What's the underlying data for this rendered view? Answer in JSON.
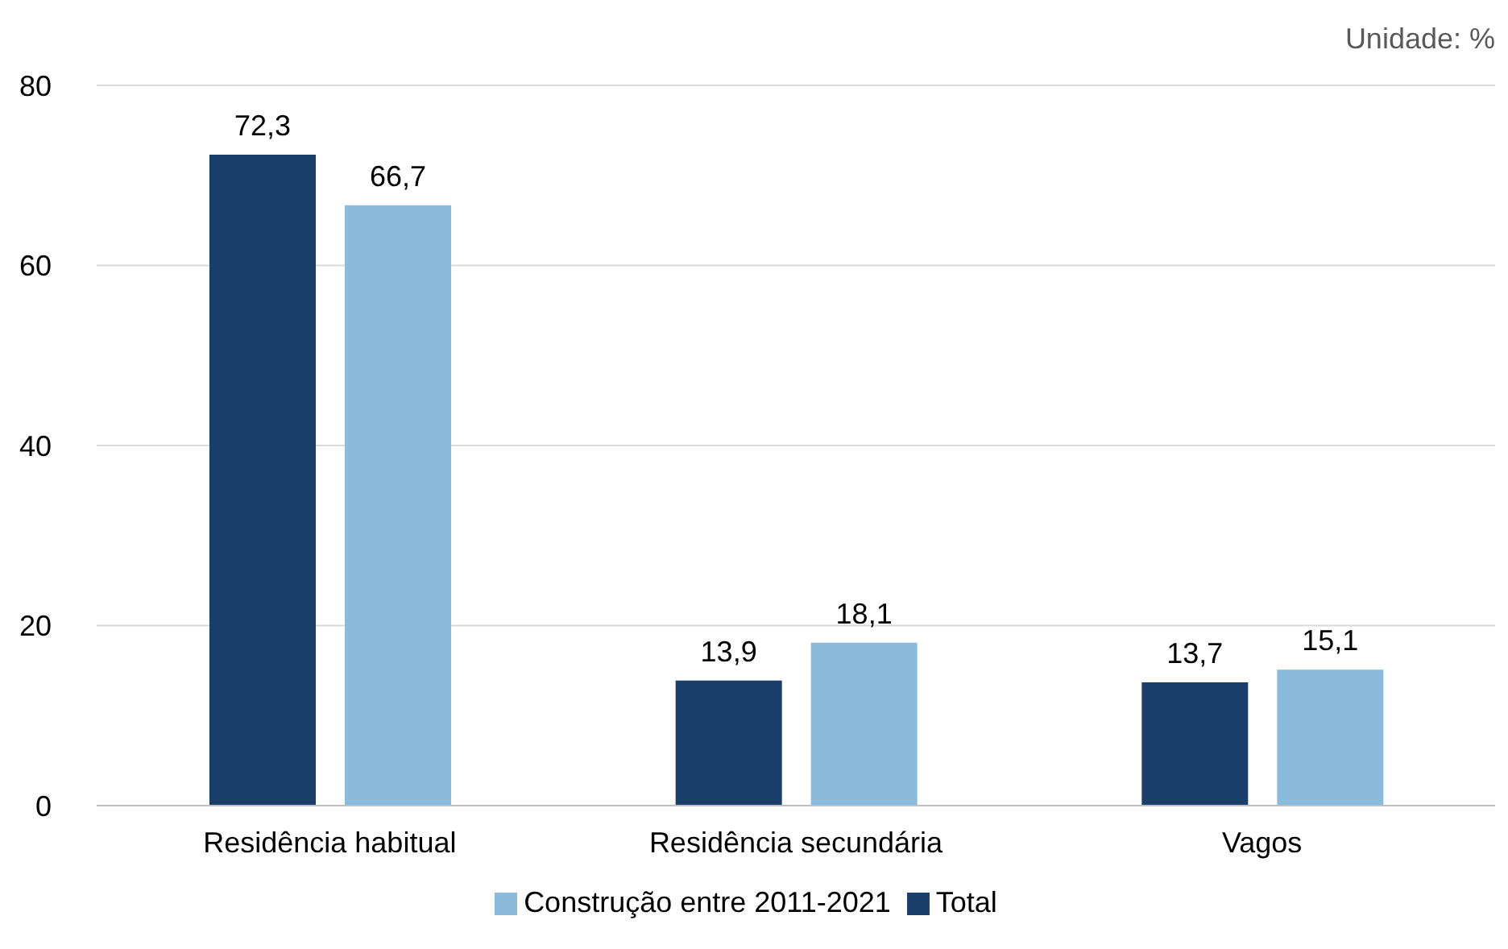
{
  "chart_data": {
    "type": "bar",
    "categories": [
      "Residência habitual",
      "Residência secundária",
      "Vagos"
    ],
    "series": [
      {
        "name": "Total",
        "color": "#1a3f6b",
        "values": [
          72.3,
          13.9,
          13.7
        ],
        "value_labels": [
          "72,3",
          "13,9",
          "13,7"
        ]
      },
      {
        "name": "Construção entre 2011-2021",
        "color": "#8bbbdc",
        "values": [
          66.7,
          18.1,
          15.1
        ],
        "value_labels": [
          "66,7",
          "18,1",
          "15,1"
        ]
      }
    ],
    "ylim": [
      0,
      80
    ],
    "yticks": [
      0,
      20,
      40,
      60,
      80
    ],
    "grid": "y",
    "legend": "bottom",
    "annotations": [
      "Unidade: %"
    ]
  }
}
